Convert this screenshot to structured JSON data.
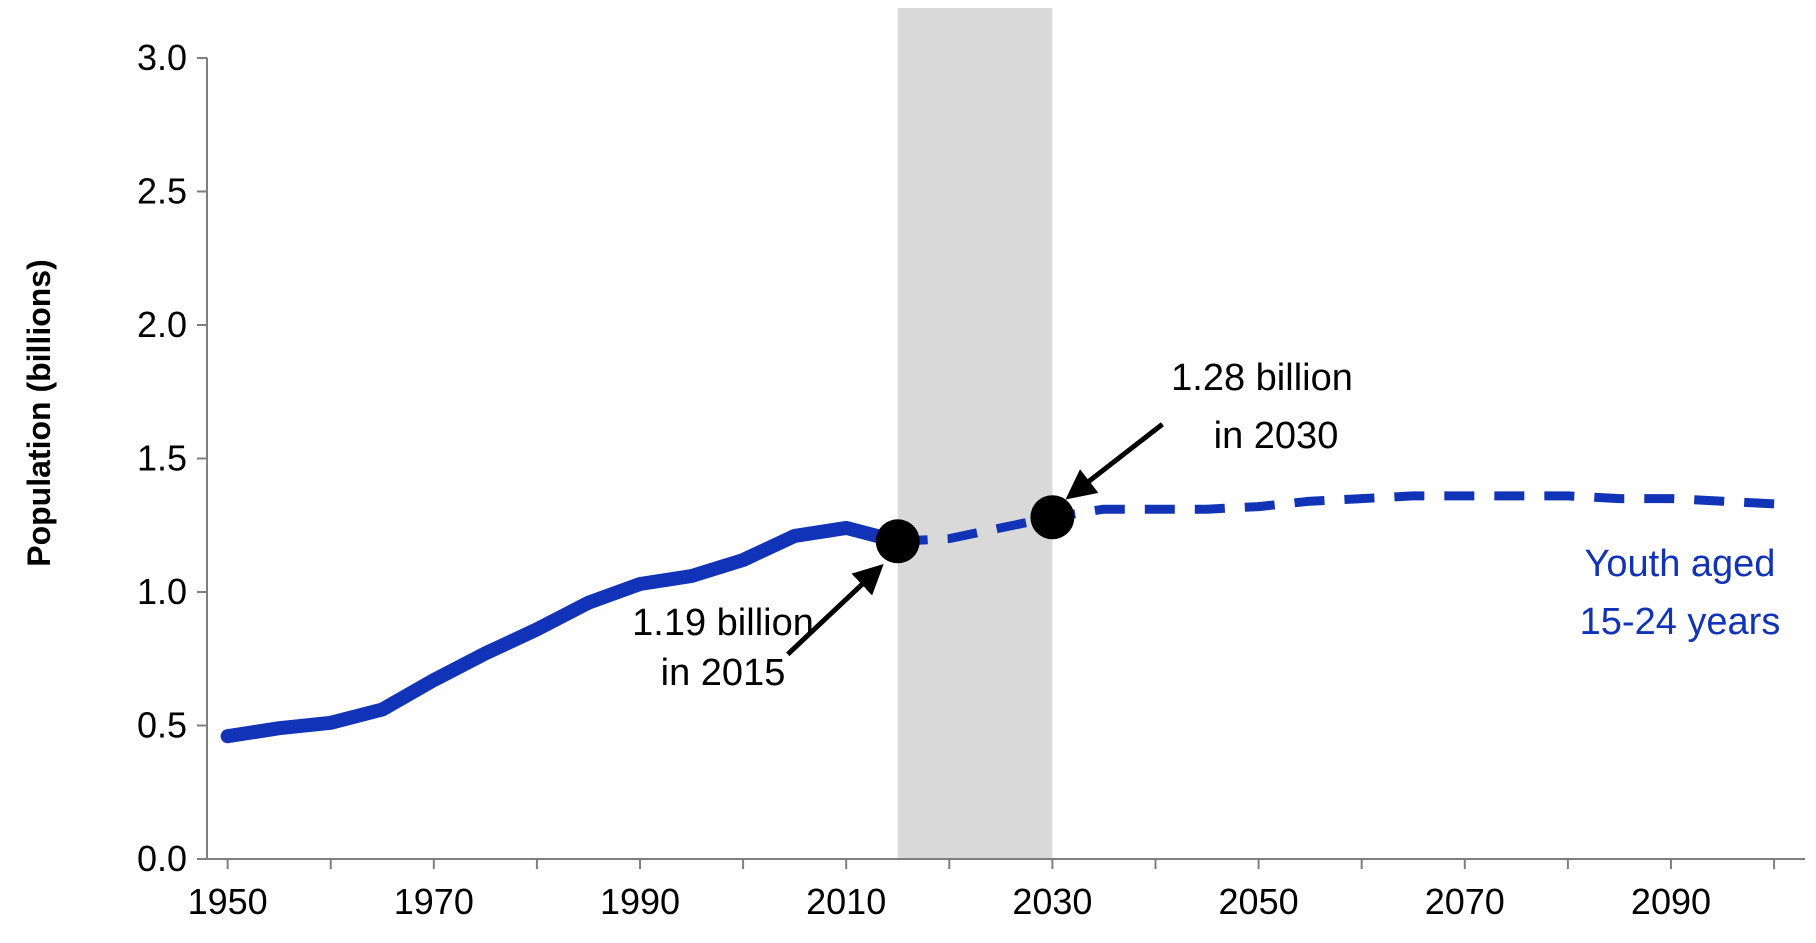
{
  "chart_data": {
    "type": "line",
    "title": "",
    "xlabel": "",
    "ylabel": "Population (billions)",
    "xlim": [
      1948,
      2103
    ],
    "ylim": [
      0,
      3.0
    ],
    "x_ticks": [
      1950,
      1970,
      1990,
      2010,
      2030,
      2050,
      2070,
      2090
    ],
    "y_ticks": [
      "0.0",
      "0.5",
      "1.0",
      "1.5",
      "2.0",
      "2.5",
      "3.0"
    ],
    "y_tick_values": [
      0,
      0.5,
      1.0,
      1.5,
      2.0,
      2.5,
      3.0
    ],
    "grid": false,
    "highlight_band": {
      "x_start": 2015,
      "x_end": 2030,
      "color": "#d9d9d9"
    },
    "series": [
      {
        "name": "Youth aged 15-24 years",
        "color": "#1033b8",
        "segments": [
          {
            "style": "solid",
            "points": [
              [
                1950,
                0.46
              ],
              [
                1955,
                0.49
              ],
              [
                1960,
                0.51
              ],
              [
                1965,
                0.56
              ],
              [
                1970,
                0.67
              ],
              [
                1975,
                0.77
              ],
              [
                1980,
                0.86
              ],
              [
                1985,
                0.96
              ],
              [
                1990,
                1.03
              ],
              [
                1995,
                1.06
              ],
              [
                2000,
                1.12
              ],
              [
                2005,
                1.21
              ],
              [
                2010,
                1.24
              ],
              [
                2015,
                1.19
              ]
            ]
          },
          {
            "style": "dashed",
            "points": [
              [
                2015,
                1.19
              ],
              [
                2020,
                1.2
              ],
              [
                2025,
                1.24
              ],
              [
                2030,
                1.28
              ],
              [
                2035,
                1.31
              ],
              [
                2040,
                1.31
              ],
              [
                2045,
                1.31
              ],
              [
                2050,
                1.32
              ],
              [
                2055,
                1.34
              ],
              [
                2060,
                1.35
              ],
              [
                2065,
                1.36
              ],
              [
                2070,
                1.36
              ],
              [
                2075,
                1.36
              ],
              [
                2080,
                1.36
              ],
              [
                2085,
                1.35
              ],
              [
                2090,
                1.35
              ],
              [
                2095,
                1.34
              ],
              [
                2100,
                1.33
              ]
            ]
          }
        ]
      }
    ],
    "markers": [
      {
        "x": 2015,
        "y": 1.19
      },
      {
        "x": 2030,
        "y": 1.28
      }
    ],
    "annotations": [
      {
        "lines": [
          "1.19 billion",
          "in 2015"
        ],
        "target_year": 2015,
        "target_value": 1.19
      },
      {
        "lines": [
          "1.28 billion",
          "in 2030"
        ],
        "target_year": 2030,
        "target_value": 1.28
      }
    ],
    "series_label": [
      "Youth aged",
      "15-24 years"
    ]
  }
}
